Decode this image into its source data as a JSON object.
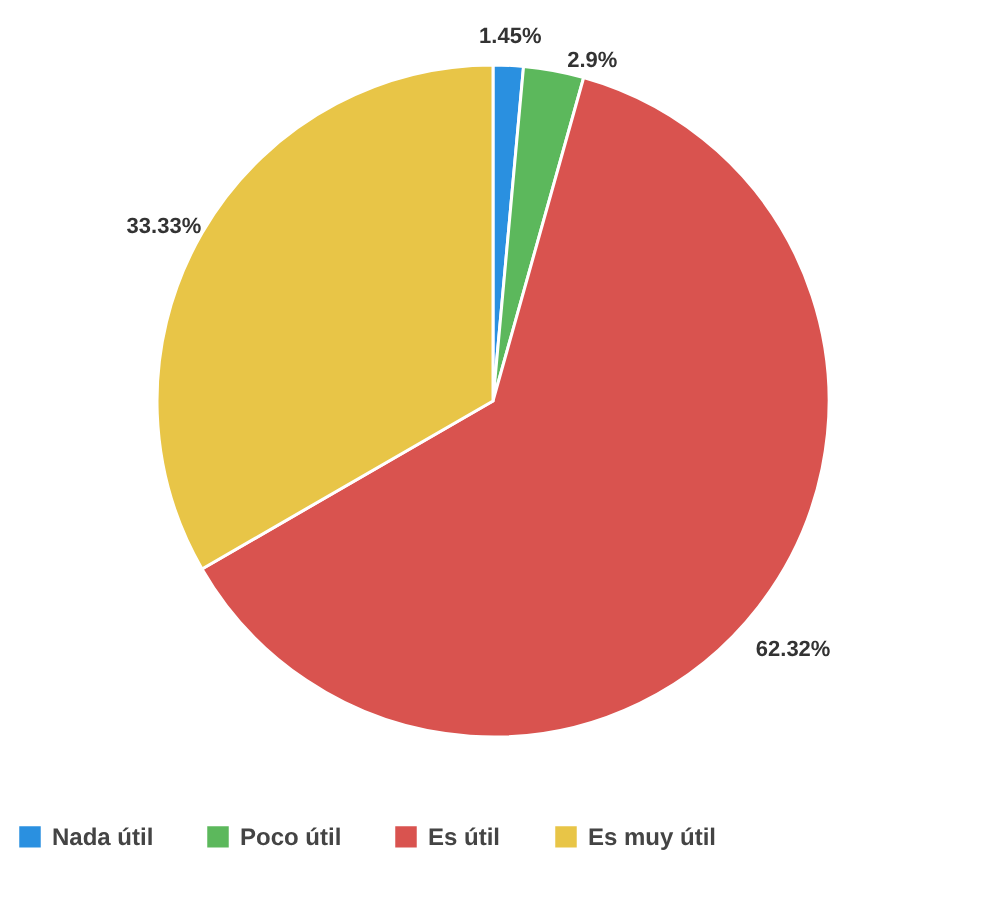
{
  "chart_data": {
    "type": "pie",
    "categories": [
      "Nada útil",
      "Poco útil",
      "Es útil",
      "Es muy útil"
    ],
    "values": [
      1.45,
      2.9,
      62.32,
      33.33
    ],
    "colors": [
      "#2a90e0",
      "#5cb85c",
      "#d9534f",
      "#e8c547"
    ],
    "value_labels": [
      "1.45%",
      "2.9%",
      "62.32%",
      "33.33%"
    ],
    "legend": "bottom"
  }
}
